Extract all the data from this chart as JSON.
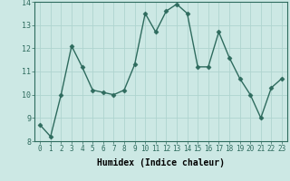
{
  "x": [
    0,
    1,
    2,
    3,
    4,
    5,
    6,
    7,
    8,
    9,
    10,
    11,
    12,
    13,
    14,
    15,
    16,
    17,
    18,
    19,
    20,
    21,
    22,
    23
  ],
  "y": [
    8.7,
    8.2,
    10.0,
    12.1,
    11.2,
    10.2,
    10.1,
    10.0,
    10.2,
    11.3,
    13.5,
    12.7,
    13.6,
    13.9,
    13.5,
    11.2,
    11.2,
    12.7,
    11.6,
    10.7,
    10.0,
    9.0,
    10.3,
    10.7
  ],
  "xlabel": "Humidex (Indice chaleur)",
  "ylim": [
    8,
    14
  ],
  "xlim": [
    -0.5,
    23.5
  ],
  "yticks": [
    8,
    9,
    10,
    11,
    12,
    13,
    14
  ],
  "xticks": [
    0,
    1,
    2,
    3,
    4,
    5,
    6,
    7,
    8,
    9,
    10,
    11,
    12,
    13,
    14,
    15,
    16,
    17,
    18,
    19,
    20,
    21,
    22,
    23
  ],
  "line_color": "#2e6b5e",
  "bg_color": "#cce8e4",
  "grid_color": "#afd4cf",
  "marker": "D",
  "marker_size": 2.5,
  "line_width": 1.0,
  "tick_fontsize": 5.5,
  "xlabel_fontsize": 7,
  "ytick_fontsize": 6
}
